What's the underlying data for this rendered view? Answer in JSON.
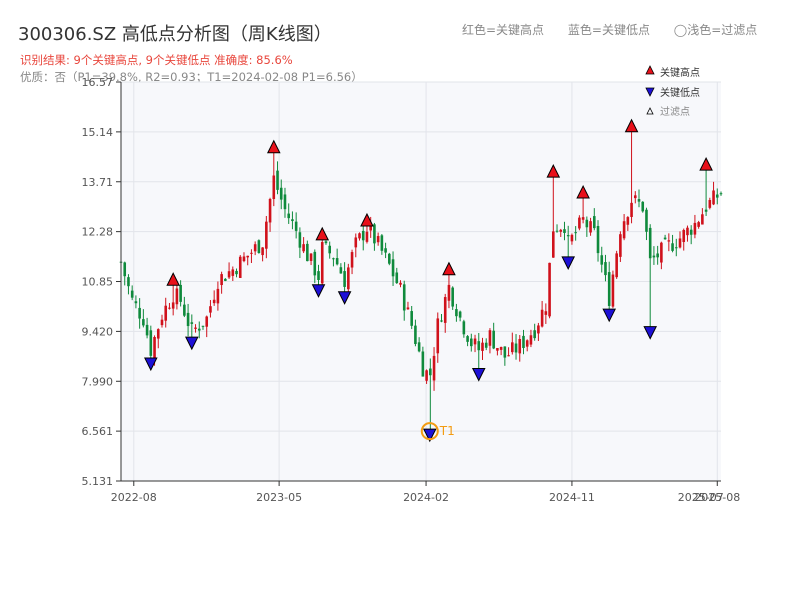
{
  "header": {
    "title": "300306.SZ 高低点分析图（周K线图）",
    "result_line": "识别结果: 9个关键高点, 9个关键低点  准确度: 85.6%",
    "quality_line": "优质：否（P1=39.8%, R2=0.93；T1=2024-02-08 P1=6.56）"
  },
  "top_legend": {
    "red": "红色=关键高点",
    "blue": "蓝色=关键低点",
    "light": "◯浅色=过滤点"
  },
  "colors": {
    "up": "#d0111b",
    "down": "#0f8a3c",
    "high_marker": "#e8101a",
    "low_marker": "#1d10d6",
    "t1_ring": "#f39c12",
    "plot_bg": "#f7f8fb",
    "grid": "#e2e4ea"
  },
  "chart_data": {
    "type": "candlestick",
    "title": "300306.SZ 高低点分析图（周K线图）",
    "x_range": [
      "2022-07-08",
      "2025-08-08"
    ],
    "x_ticks": [
      "2022-08",
      "2023-05",
      "2024-02",
      "2024-11",
      "2025-08"
    ],
    "extra_tick_label": "2025-07",
    "ylim": [
      5.131,
      16.57
    ],
    "y_ticks": [
      "5.131",
      "6.561",
      "7.990",
      "9.420",
      "10.85",
      "12.28",
      "13.71",
      "15.14",
      "16.57"
    ],
    "y_tick_values": [
      5.131,
      6.561,
      7.99,
      9.42,
      10.85,
      12.28,
      13.71,
      15.14,
      16.57
    ],
    "series": [
      {
        "name": "关键高点",
        "marker": "red-up-triangle",
        "points": [
          {
            "x": "2022-10-14",
            "y": 10.8
          },
          {
            "x": "2023-04-21",
            "y": 14.6
          },
          {
            "x": "2023-07-21",
            "y": 12.1
          },
          {
            "x": "2023-10-13",
            "y": 12.5
          },
          {
            "x": "2024-03-15",
            "y": 11.1
          },
          {
            "x": "2024-09-27",
            "y": 13.9
          },
          {
            "x": "2024-11-22",
            "y": 13.3
          },
          {
            "x": "2025-02-21",
            "y": 15.2
          },
          {
            "x": "2025-07-11",
            "y": 14.1
          }
        ]
      },
      {
        "name": "关键低点",
        "marker": "blue-down-triangle",
        "points": [
          {
            "x": "2022-09-02",
            "y": 8.6
          },
          {
            "x": "2022-11-18",
            "y": 9.2
          },
          {
            "x": "2023-07-14",
            "y": 10.7
          },
          {
            "x": "2023-09-01",
            "y": 10.5
          },
          {
            "x": "2024-02-08",
            "y": 6.56
          },
          {
            "x": "2024-05-10",
            "y": 8.3
          },
          {
            "x": "2024-10-25",
            "y": 11.5
          },
          {
            "x": "2025-01-10",
            "y": 10.0
          },
          {
            "x": "2025-03-28",
            "y": 9.5
          }
        ]
      },
      {
        "name": "过滤点",
        "marker": "hollow-triangle",
        "points": []
      }
    ],
    "price_path": [
      {
        "x": "2022-07-08",
        "y": 11.4
      },
      {
        "x": "2022-07-29",
        "y": 10.3
      },
      {
        "x": "2022-08-19",
        "y": 9.8
      },
      {
        "x": "2022-09-02",
        "y": 8.9
      },
      {
        "x": "2022-09-23",
        "y": 9.9
      },
      {
        "x": "2022-10-14",
        "y": 10.5
      },
      {
        "x": "2022-10-28",
        "y": 10.3
      },
      {
        "x": "2022-11-18",
        "y": 9.4
      },
      {
        "x": "2022-12-16",
        "y": 9.8
      },
      {
        "x": "2023-01-06",
        "y": 10.9
      },
      {
        "x": "2023-02-03",
        "y": 11.2
      },
      {
        "x": "2023-03-03",
        "y": 11.6
      },
      {
        "x": "2023-03-31",
        "y": 12.0
      },
      {
        "x": "2023-04-21",
        "y": 13.8
      },
      {
        "x": "2023-05-12",
        "y": 12.9
      },
      {
        "x": "2023-06-02",
        "y": 12.3
      },
      {
        "x": "2023-06-23",
        "y": 11.6
      },
      {
        "x": "2023-07-14",
        "y": 11.0
      },
      {
        "x": "2023-07-21",
        "y": 11.8
      },
      {
        "x": "2023-08-11",
        "y": 11.6
      },
      {
        "x": "2023-09-01",
        "y": 10.9
      },
      {
        "x": "2023-09-22",
        "y": 11.9
      },
      {
        "x": "2023-10-13",
        "y": 12.4
      },
      {
        "x": "2023-11-03",
        "y": 11.9
      },
      {
        "x": "2023-11-24",
        "y": 11.3
      },
      {
        "x": "2023-12-15",
        "y": 10.6
      },
      {
        "x": "2024-01-05",
        "y": 9.6
      },
      {
        "x": "2024-01-26",
        "y": 8.4
      },
      {
        "x": "2024-02-08",
        "y": 8.1
      },
      {
        "x": "2024-02-23",
        "y": 9.6
      },
      {
        "x": "2024-03-15",
        "y": 10.7
      },
      {
        "x": "2024-04-05",
        "y": 9.8
      },
      {
        "x": "2024-04-26",
        "y": 9.1
      },
      {
        "x": "2024-05-10",
        "y": 8.9
      },
      {
        "x": "2024-05-31",
        "y": 9.3
      },
      {
        "x": "2024-06-28",
        "y": 8.7
      },
      {
        "x": "2024-07-26",
        "y": 9.0
      },
      {
        "x": "2024-08-23",
        "y": 9.5
      },
      {
        "x": "2024-09-13",
        "y": 10.2
      },
      {
        "x": "2024-09-27",
        "y": 12.4
      },
      {
        "x": "2024-10-18",
        "y": 12.5
      },
      {
        "x": "2024-10-25",
        "y": 11.9
      },
      {
        "x": "2024-11-22",
        "y": 12.6
      },
      {
        "x": "2024-12-13",
        "y": 12.2
      },
      {
        "x": "2025-01-10",
        "y": 10.4
      },
      {
        "x": "2025-01-31",
        "y": 12.4
      },
      {
        "x": "2025-02-21",
        "y": 13.2
      },
      {
        "x": "2025-03-14",
        "y": 13.0
      },
      {
        "x": "2025-03-28",
        "y": 11.4
      },
      {
        "x": "2025-04-25",
        "y": 11.8
      },
      {
        "x": "2025-05-23",
        "y": 12.1
      },
      {
        "x": "2025-06-20",
        "y": 12.5
      },
      {
        "x": "2025-07-11",
        "y": 13.0
      },
      {
        "x": "2025-08-08",
        "y": 13.4
      }
    ],
    "annotation": {
      "label": "T1",
      "x": "2024-02-08",
      "y": 6.56
    },
    "legend": [
      "关键高点",
      "关键低点",
      "过滤点"
    ],
    "legend_position": "top-right",
    "grid": true
  }
}
